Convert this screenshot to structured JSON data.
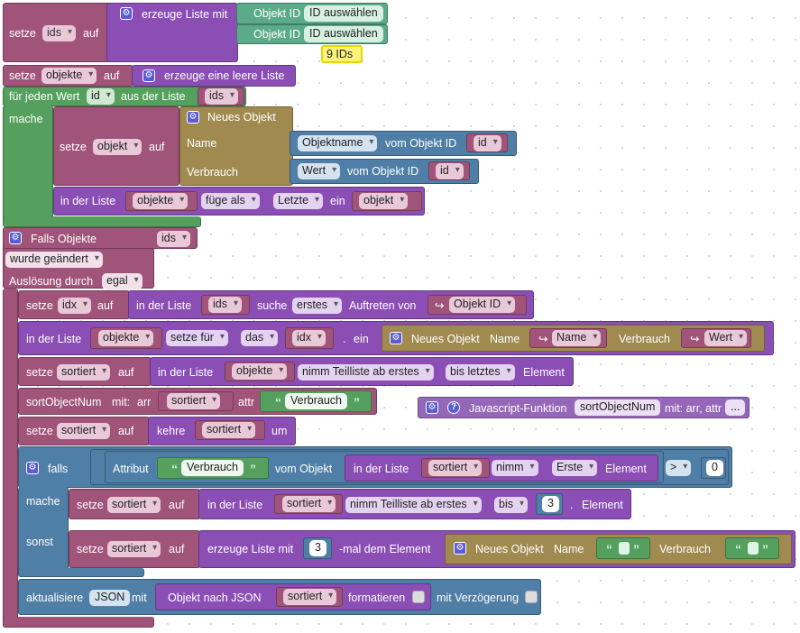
{
  "b1": {
    "setze": "setze",
    "var": "ids",
    "auf": "auf",
    "create_list": "erzeuge Liste mit",
    "objid1": "Objekt ID",
    "sel1": "ID auswählen",
    "objid2": "Objekt ID",
    "sel2": "ID auswählen",
    "comment": "9 IDs"
  },
  "b2": {
    "setze": "setze",
    "var": "objekte",
    "auf": "auf",
    "empty_list": "erzeuge eine leere Liste"
  },
  "b3": {
    "for_each": "für jeden Wert",
    "var": "id",
    "from_list": "aus der Liste",
    "list": "ids",
    "mache": "mache",
    "setze": "setze",
    "objvar": "objekt",
    "auf": "auf",
    "new_obj": "Neues Objekt",
    "name_lbl": "Name",
    "verbrauch_lbl": "Verbrauch",
    "objname": "Objektname",
    "vom_id1": "vom Objekt ID",
    "idvar1": "id",
    "wert": "Wert",
    "vom_id2": "vom Objekt ID",
    "idvar2": "id",
    "in_list": "in der Liste",
    "listvar": "objekte",
    "insert_as": "füge als",
    "last": "Letzte",
    "ein": "ein",
    "item": "objekt"
  },
  "b4": {
    "trigger": "Falls Objekte",
    "ids": "ids",
    "changed": "wurde geändert",
    "by": "Auslösung durch",
    "any": "egal"
  },
  "r1": {
    "setze": "setze",
    "var": "idx",
    "auf": "auf",
    "in_list": "in der Liste",
    "list": "ids",
    "suche": "suche",
    "first": "erstes",
    "occ": "Auftreten von",
    "objid": "Objekt ID"
  },
  "r2": {
    "in_list": "in der Liste",
    "list": "objekte",
    "set_for": "setze für",
    "das": "das",
    "idx": "idx",
    "dot": ".",
    "ein": "ein",
    "new_obj": "Neues Objekt",
    "name_lbl": "Name",
    "name_val": "Name",
    "verbrauch_lbl": "Verbrauch",
    "wert": "Wert"
  },
  "r3": {
    "setze": "setze",
    "var": "sortiert",
    "auf": "auf",
    "in_list": "in der Liste",
    "list": "objekte",
    "sublist": "nimm Teilliste ab erstes",
    "to": "bis letztes",
    "element": "Element"
  },
  "r4": {
    "fn": "sortObjectNum",
    "mit": "mit:",
    "arr": "arr",
    "var": "sortiert",
    "attr": "attr",
    "str": "Verbrauch"
  },
  "js": {
    "title": "Javascript-Funktion",
    "name": "sortObjectNum",
    "args": "mit: arr, attr",
    "more": "..."
  },
  "r5": {
    "setze": "setze",
    "var": "sortiert",
    "auf": "auf",
    "kehre": "kehre",
    "arg": "sortiert",
    "um": "um"
  },
  "ifb": {
    "falls": "falls",
    "attribut": "Attribut",
    "str": "Verbrauch",
    "vom_obj": "vom Objekt",
    "in_list": "in der Liste",
    "list": "sortiert",
    "nimm": "nimm",
    "erste": "Erste",
    "element": "Element",
    "op": ">",
    "zero": "0",
    "mache": "mache",
    "setze1": "setze",
    "var1": "sortiert",
    "auf1": "auf",
    "in_list2": "in der Liste",
    "list2": "sortiert",
    "sublist": "nimm Teilliste ab erstes",
    "bis": "bis",
    "three": "3",
    "dot": ".",
    "element2": "Element",
    "sonst": "sonst",
    "setze2": "setze",
    "var2": "sortiert",
    "auf2": "auf",
    "create_list": "erzeuge Liste mit",
    "three2": "3",
    "times": "-mal dem Element",
    "new_obj": "Neues Objekt",
    "name_lbl": "Name",
    "verbrauch_lbl": "Verbrauch"
  },
  "r6": {
    "update": "aktualisiere",
    "state": "JSON",
    "mit": "mit",
    "tojson": "Objekt nach JSON",
    "var": "sortiert",
    "format": "formatieren",
    "delay": "mit Verzögerung"
  }
}
